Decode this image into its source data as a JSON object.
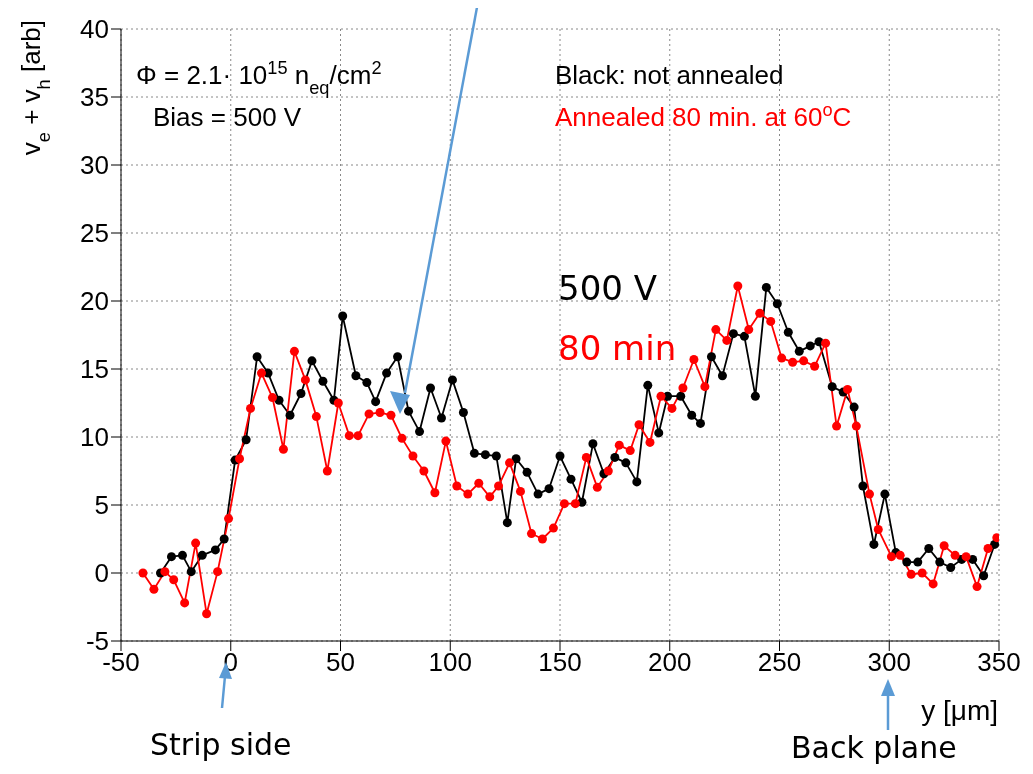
{
  "chart_data": {
    "type": "line",
    "xlabel": "y [μm]",
    "ylabel": "v$_{e}$ + v$_{h}$ [arb]",
    "xlim": [
      -50,
      350
    ],
    "xticks": [
      -50,
      0,
      50,
      100,
      150,
      200,
      250,
      300,
      350
    ],
    "ylim": [
      -5,
      40
    ],
    "yticks": [
      -5,
      0,
      5,
      10,
      15,
      20,
      25,
      30,
      35,
      40
    ],
    "grid": true,
    "marker": "circle",
    "line_style": "solid",
    "series": [
      {
        "color": "#000000",
        "x": [
          -32,
          -27,
          -22,
          -18,
          -13,
          -7,
          -3,
          2,
          7,
          12,
          17,
          22,
          27,
          32,
          37,
          42,
          47,
          51,
          57,
          62,
          66,
          71,
          76,
          81,
          86,
          91,
          96,
          101,
          106,
          111,
          116,
          121,
          126,
          130,
          135,
          140,
          145,
          150,
          155,
          160,
          165,
          170,
          175,
          180,
          185,
          190,
          195,
          199,
          205,
          210,
          214,
          219,
          224,
          229,
          234,
          239,
          244,
          249,
          254,
          259,
          264,
          268,
          274,
          279,
          284,
          288,
          293,
          298,
          303,
          308,
          313,
          318,
          323,
          328,
          333,
          338,
          343,
          348
        ],
        "values": [
          0.0,
          1.2,
          1.3,
          0.1,
          1.3,
          1.7,
          2.5,
          8.3,
          9.8,
          15.9,
          14.7,
          12.7,
          11.6,
          13.2,
          15.6,
          14.1,
          12.7,
          18.9,
          14.5,
          14.0,
          12.6,
          14.7,
          15.9,
          11.9,
          10.4,
          13.6,
          11.4,
          14.2,
          11.8,
          8.8,
          8.7,
          8.6,
          3.7,
          8.4,
          7.4,
          5.8,
          6.2,
          8.6,
          6.9,
          5.2,
          9.5,
          7.3,
          8.5,
          8.1,
          6.7,
          13.8,
          10.3,
          13.0,
          13.0,
          11.6,
          11.0,
          15.9,
          14.5,
          17.6,
          17.4,
          13.0,
          21.0,
          19.8,
          17.7,
          16.3,
          16.7,
          17.0,
          13.7,
          13.3,
          12.2,
          6.4,
          2.1,
          5.8,
          1.5,
          0.8,
          0.8,
          1.8,
          0.8,
          0.4,
          1.0,
          1.0,
          -0.2,
          2.1
        ]
      },
      {
        "color": "#ff0000",
        "x": [
          -40,
          -35,
          -30,
          -26,
          -21,
          -16,
          -11,
          -6,
          -1,
          4,
          9,
          14,
          19,
          24,
          29,
          34,
          39,
          44,
          49,
          54,
          58,
          63,
          68,
          73,
          78,
          83,
          88,
          93,
          98,
          103,
          108,
          113,
          118,
          122,
          127,
          132,
          137,
          142,
          147,
          152,
          157,
          162,
          167,
          172,
          177,
          182,
          186,
          191,
          196,
          201,
          206,
          211,
          216,
          221,
          226,
          231,
          236,
          241,
          246,
          251,
          256,
          261,
          266,
          271,
          276,
          281,
          285,
          291,
          295,
          301,
          305,
          310,
          315,
          320,
          325,
          330,
          335,
          340,
          345,
          349
        ],
        "values": [
          0.0,
          -1.2,
          0.1,
          -0.5,
          -2.2,
          2.2,
          -3.0,
          0.1,
          4.0,
          8.4,
          12.1,
          14.7,
          12.9,
          9.1,
          16.3,
          14.2,
          11.5,
          7.5,
          12.5,
          10.1,
          10.1,
          11.7,
          11.8,
          11.6,
          9.9,
          8.6,
          7.5,
          5.9,
          9.7,
          6.4,
          5.8,
          6.6,
          5.6,
          6.4,
          8.1,
          6.0,
          2.9,
          2.5,
          3.3,
          5.1,
          5.1,
          8.5,
          6.3,
          7.5,
          9.4,
          9.0,
          10.9,
          9.6,
          13.0,
          12.1,
          13.6,
          15.7,
          13.7,
          17.9,
          17.1,
          21.1,
          17.9,
          19.1,
          18.5,
          15.8,
          15.5,
          15.6,
          15.2,
          16.9,
          10.8,
          13.5,
          10.8,
          5.8,
          3.2,
          1.2,
          1.3,
          -0.1,
          0.0,
          -0.8,
          2.0,
          1.3,
          1.2,
          -1.0,
          1.8,
          2.6
        ]
      }
    ],
    "annotations": [
      "Φ = 2.1· 10$^{15}$ n$_{eq}$/cm$^{2}$",
      "Bias = 500 V",
      "Black: not annealed",
      "Annealed 80 min. at 60$^{o}$C",
      "500 V",
      "80 min",
      "Strip side",
      "Back plane"
    ]
  }
}
